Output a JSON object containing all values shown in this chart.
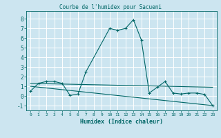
{
  "title": "Courbe de l'humidex pour Sacueni",
  "xlabel": "Humidex (Indice chaleur)",
  "background_color": "#cce5f0",
  "grid_color": "#ffffff",
  "line_color": "#006666",
  "xlim": [
    -0.5,
    23.5
  ],
  "ylim": [
    -1.5,
    8.8
  ],
  "xtick_labels": [
    "0",
    "1",
    "2",
    "3",
    "4",
    "5",
    "6",
    "7",
    "8",
    "9",
    "10",
    "11",
    "12",
    "13",
    "14",
    "15",
    "16",
    "17",
    "18",
    "19",
    "20",
    "21",
    "22",
    "23"
  ],
  "ytick_values": [
    -1,
    0,
    1,
    2,
    3,
    4,
    5,
    6,
    7,
    8
  ],
  "line1_x": [
    0,
    1,
    2,
    3,
    4,
    5,
    6,
    7,
    10,
    11,
    12,
    13,
    14,
    15,
    16,
    17,
    18,
    19,
    20,
    21,
    22,
    23
  ],
  "line1_y": [
    0.5,
    1.3,
    1.5,
    1.5,
    1.3,
    0.05,
    0.2,
    2.5,
    7.0,
    6.8,
    7.0,
    7.9,
    5.8,
    0.3,
    0.9,
    1.5,
    0.3,
    0.2,
    0.3,
    0.3,
    0.15,
    -1.0
  ],
  "line2_x": [
    0,
    23
  ],
  "line2_y": [
    1.3,
    0.9
  ],
  "line3_x": [
    0,
    23
  ],
  "line3_y": [
    1.0,
    -1.0
  ]
}
